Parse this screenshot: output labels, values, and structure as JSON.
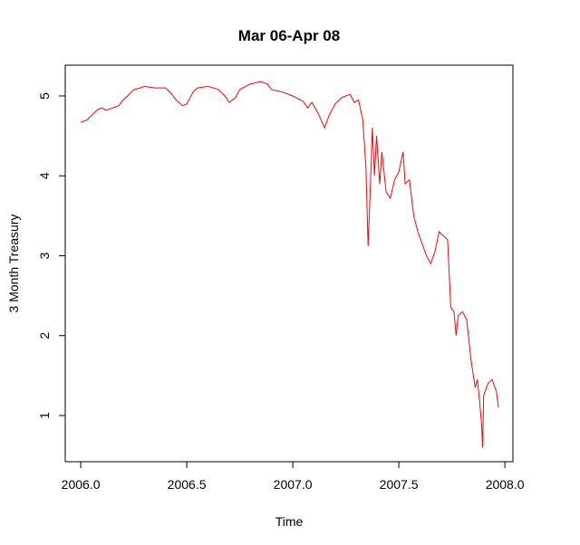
{
  "chart_data": {
    "type": "line",
    "title": "Mar 06-Apr 08",
    "xlabel": "Time",
    "ylabel": "3 Month Treasury",
    "x": [
      2006.0,
      2006.03,
      2006.06,
      2006.08,
      2006.1,
      2006.12,
      2006.15,
      2006.18,
      2006.2,
      2006.22,
      2006.25,
      2006.28,
      2006.3,
      2006.35,
      2006.4,
      2006.43,
      2006.45,
      2006.48,
      2006.5,
      2006.53,
      2006.55,
      2006.6,
      2006.65,
      2006.68,
      2006.7,
      2006.73,
      2006.75,
      2006.8,
      2006.85,
      2006.88,
      2006.9,
      2006.95,
      2007.0,
      2007.05,
      2007.07,
      2007.09,
      2007.12,
      2007.15,
      2007.17,
      2007.2,
      2007.23,
      2007.27,
      2007.29,
      2007.31,
      2007.33,
      2007.345,
      2007.355,
      2007.365,
      2007.375,
      2007.385,
      2007.395,
      2007.41,
      2007.42,
      2007.44,
      2007.46,
      2007.48,
      2007.5,
      2007.52,
      2007.53,
      2007.55,
      2007.57,
      2007.59,
      2007.61,
      2007.63,
      2007.65,
      2007.67,
      2007.69,
      2007.71,
      2007.73,
      2007.745,
      2007.76,
      2007.77,
      2007.78,
      2007.8,
      2007.82,
      2007.84,
      2007.86,
      2007.87,
      2007.88,
      2007.89,
      2007.895,
      2007.9,
      2007.92,
      2007.94,
      2007.96,
      2007.97
    ],
    "series": [
      {
        "name": "3 Month Treasury",
        "color": "#ff0000",
        "values": [
          4.67,
          4.7,
          4.78,
          4.83,
          4.85,
          4.82,
          4.85,
          4.88,
          4.95,
          5.0,
          5.08,
          5.1,
          5.12,
          5.1,
          5.1,
          5.02,
          4.95,
          4.88,
          4.9,
          5.05,
          5.1,
          5.12,
          5.08,
          5.0,
          4.92,
          4.98,
          5.08,
          5.15,
          5.18,
          5.15,
          5.08,
          5.05,
          5.0,
          4.93,
          4.85,
          4.92,
          4.78,
          4.6,
          4.75,
          4.9,
          4.98,
          5.02,
          4.92,
          4.95,
          4.7,
          4.1,
          3.12,
          3.8,
          4.6,
          4.0,
          4.5,
          3.9,
          4.3,
          3.8,
          3.72,
          3.95,
          4.05,
          4.3,
          3.9,
          3.95,
          3.5,
          3.3,
          3.15,
          3.0,
          2.9,
          3.05,
          3.3,
          3.25,
          3.2,
          2.35,
          2.3,
          2.0,
          2.25,
          2.3,
          2.2,
          1.7,
          1.35,
          1.45,
          1.2,
          0.9,
          0.6,
          1.25,
          1.4,
          1.45,
          1.3,
          1.1
        ]
      }
    ],
    "xlim": [
      2005.927,
      2008.038
    ],
    "ylim": [
      0.422,
      5.385
    ],
    "xticks": [
      {
        "value": 2006,
        "label": "2006.0"
      },
      {
        "value": 2006.5,
        "label": "2006.5"
      },
      {
        "value": 2007,
        "label": "2007.0"
      },
      {
        "value": 2007.5,
        "label": "2007.5"
      },
      {
        "value": 2008,
        "label": "2008.0"
      }
    ],
    "yticks": [
      1,
      2,
      3,
      4,
      5
    ]
  }
}
